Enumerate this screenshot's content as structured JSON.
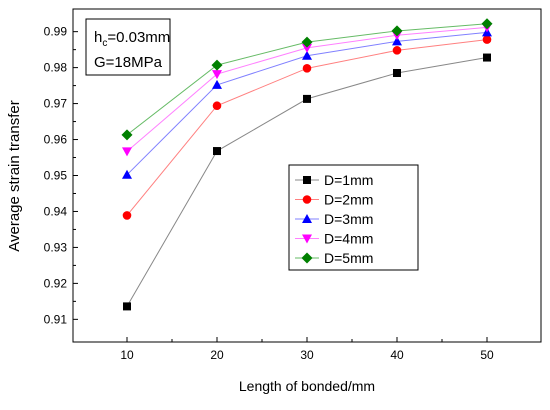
{
  "chart_data": {
    "type": "line",
    "xlabel": "Length of bonded/mm",
    "ylabel": "Average strain transfer",
    "x": [
      10,
      20,
      30,
      40,
      50
    ],
    "xlim": [
      4,
      56
    ],
    "ylim": [
      0.9037,
      0.9963
    ],
    "xticks": [
      "10",
      "20",
      "30",
      "40",
      "50"
    ],
    "yticks": [
      "0.91",
      "0.92",
      "0.93",
      "0.94",
      "0.95",
      "0.96",
      "0.97",
      "0.98",
      "0.99"
    ],
    "grid": false,
    "legend_position": "right-center",
    "annotation": {
      "hc_prefix": "h",
      "hc_sub": "c",
      "hc_value": "=0.03mm",
      "g_text": "G=18MPa"
    },
    "series": [
      {
        "name": "D=1mm",
        "marker": "square",
        "color": "#000000",
        "line_color": "#888888",
        "values": [
          0.9136,
          0.9568,
          0.9713,
          0.9785,
          0.9828
        ]
      },
      {
        "name": "D=2mm",
        "marker": "circle",
        "color": "#ff0000",
        "line_color": "#ff8080",
        "values": [
          0.9389,
          0.9694,
          0.9798,
          0.9848,
          0.9878
        ]
      },
      {
        "name": "D=3mm",
        "marker": "triangle-up",
        "color": "#0000ff",
        "line_color": "#8080ff",
        "values": [
          0.9502,
          0.9752,
          0.9833,
          0.9873,
          0.9898
        ]
      },
      {
        "name": "D=4mm",
        "marker": "triangle-down",
        "color": "#ff00ff",
        "line_color": "#ff80ff",
        "values": [
          0.9567,
          0.9782,
          0.9855,
          0.989,
          0.9912
        ]
      },
      {
        "name": "D=5mm",
        "marker": "diamond",
        "color": "#008000",
        "line_color": "#66bb66",
        "values": [
          0.9613,
          0.9807,
          0.9871,
          0.9902,
          0.9922
        ]
      }
    ]
  }
}
